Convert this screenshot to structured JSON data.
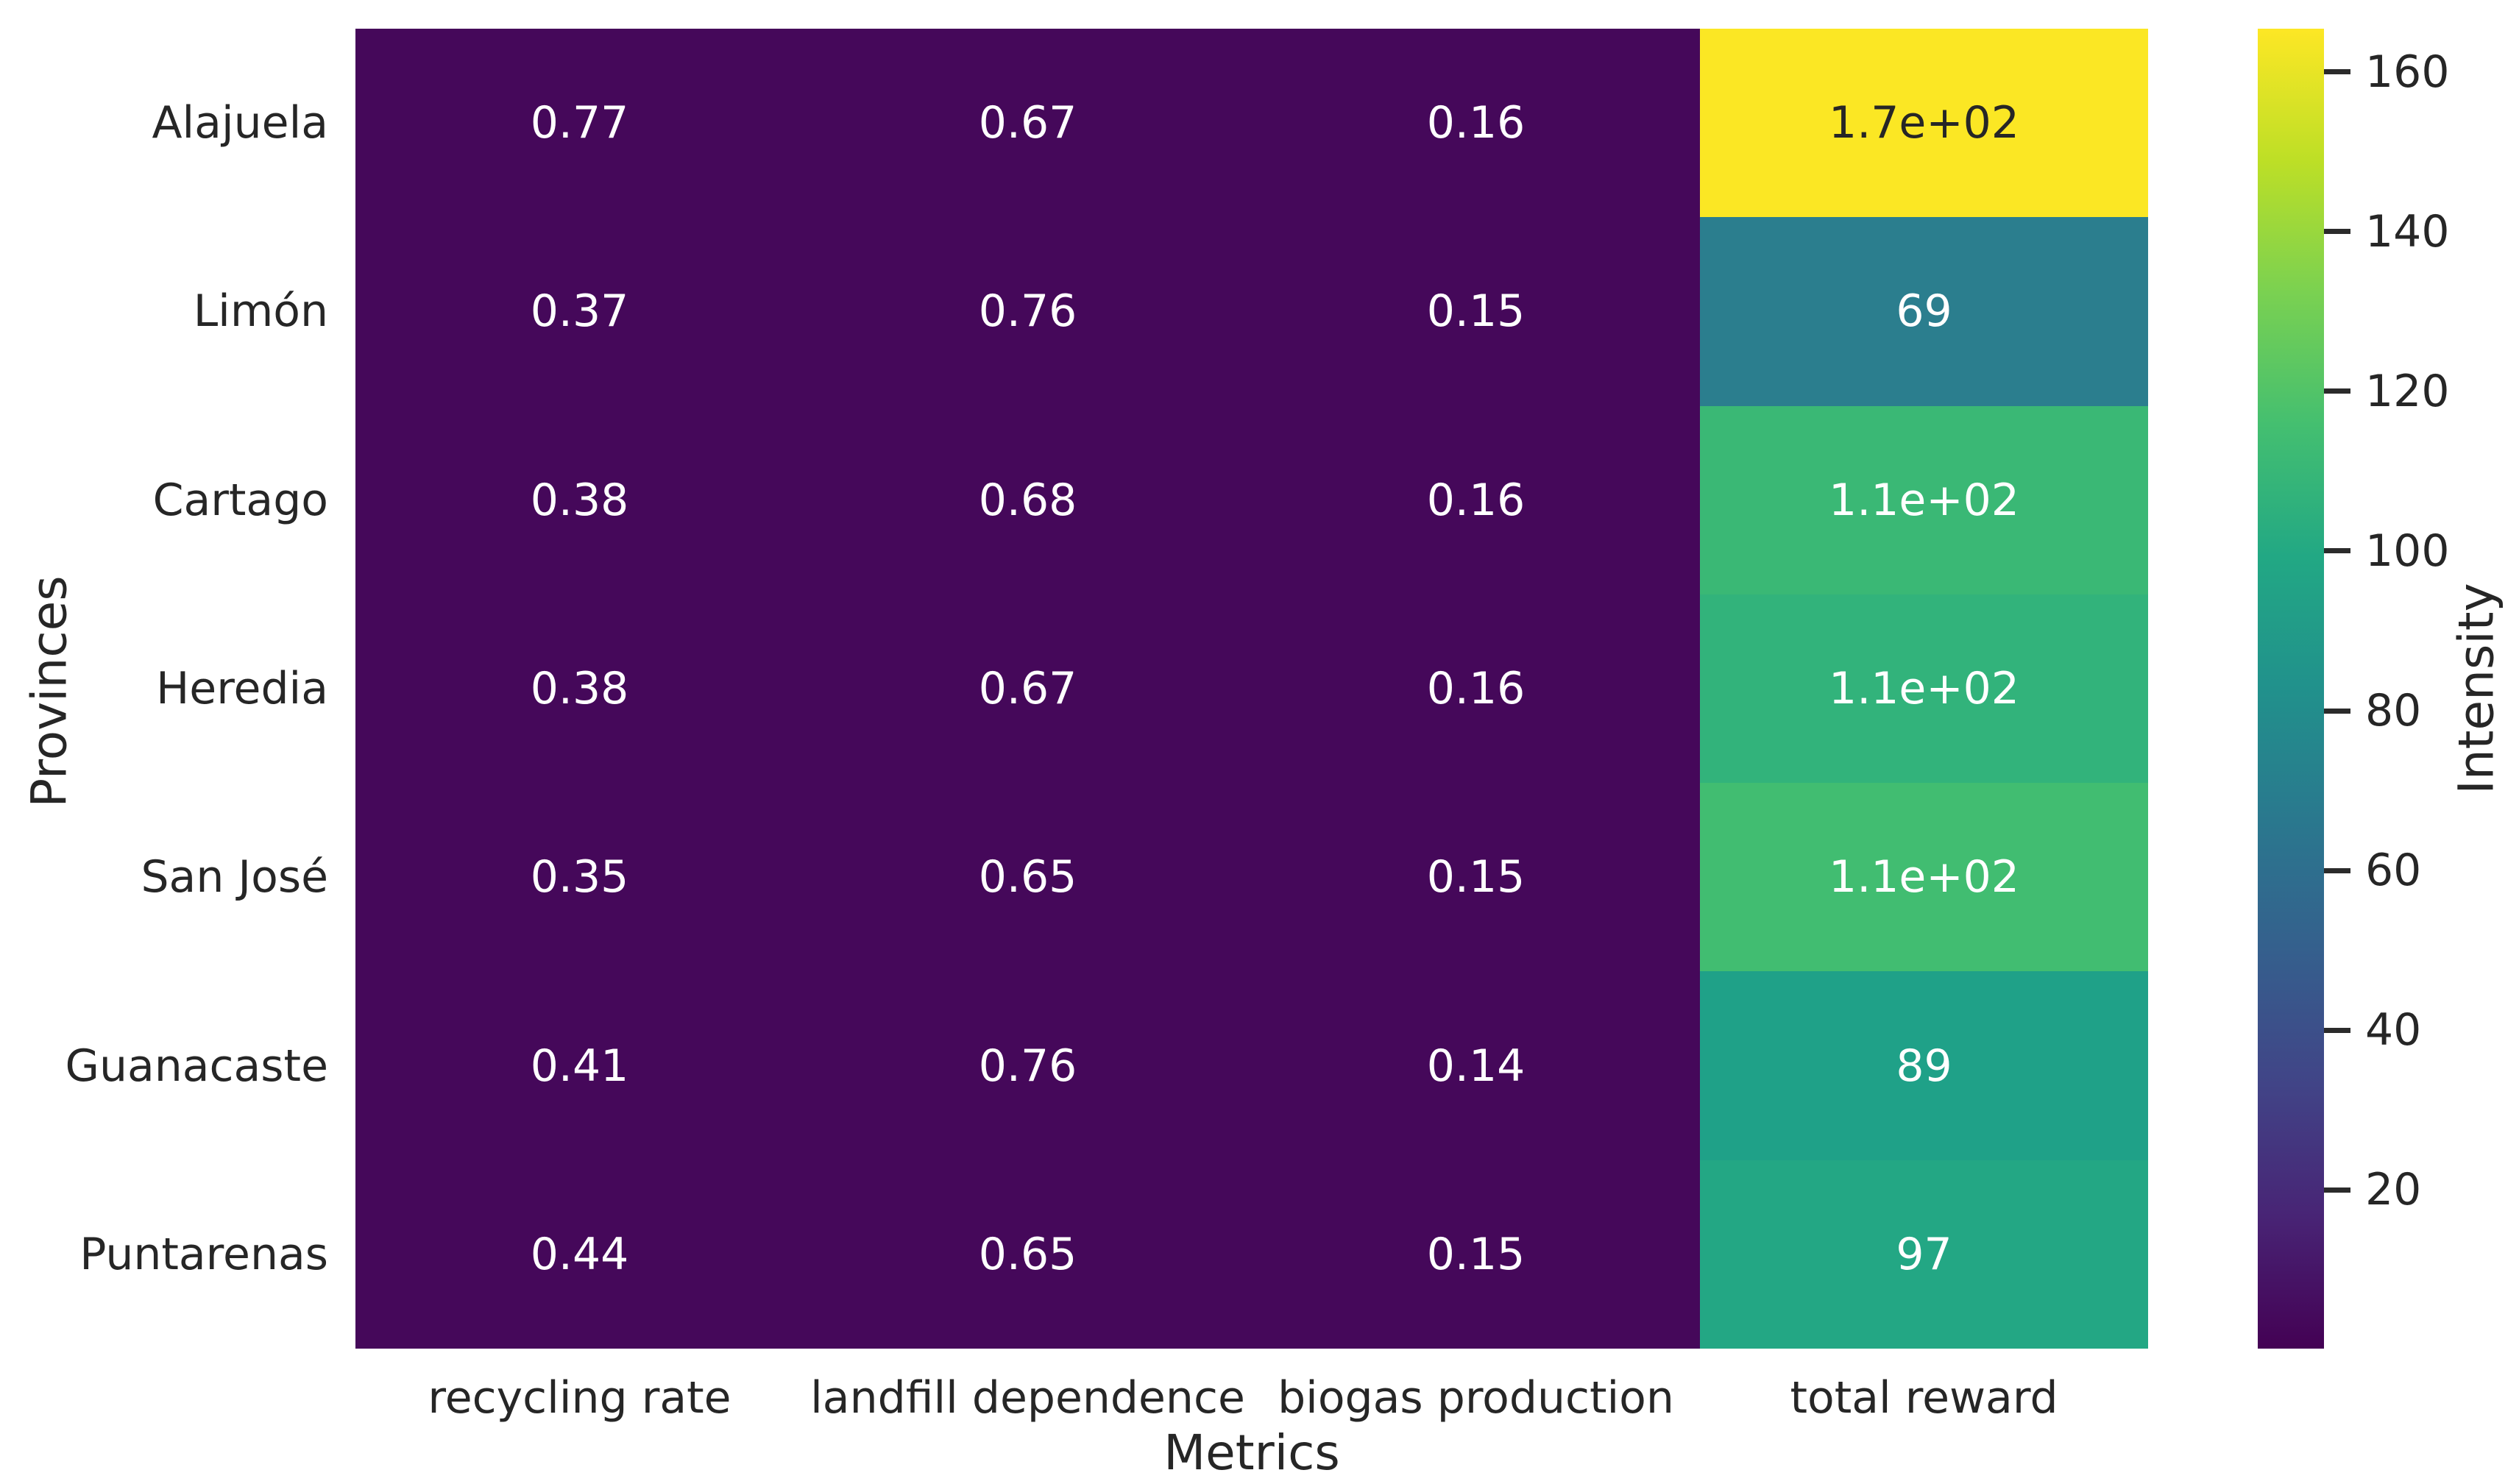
{
  "chart_data": {
    "type": "heatmap",
    "colormap": "viridis",
    "xlabel": "Metrics",
    "ylabel": "Provinces",
    "colorbar_label": "Intensity",
    "rows": [
      "Alajuela",
      "Limón",
      "Cartago",
      "Heredia",
      "San José",
      "Guanacaste",
      "Puntarenas"
    ],
    "columns": [
      "recycling rate",
      "landfill dependence",
      "biogas production",
      "total reward"
    ],
    "cell_labels": [
      [
        "0.77",
        "0.67",
        "0.16",
        "1.7e+02"
      ],
      [
        "0.37",
        "0.76",
        "0.15",
        "69"
      ],
      [
        "0.38",
        "0.68",
        "0.16",
        "1.1e+02"
      ],
      [
        "0.38",
        "0.67",
        "0.16",
        "1.1e+02"
      ],
      [
        "0.35",
        "0.65",
        "0.15",
        "1.1e+02"
      ],
      [
        "0.41",
        "0.76",
        "0.14",
        "89"
      ],
      [
        "0.44",
        "0.65",
        "0.15",
        "97"
      ]
    ],
    "values": [
      [
        0.77,
        0.67,
        0.16,
        170
      ],
      [
        0.37,
        0.76,
        0.15,
        69
      ],
      [
        0.38,
        0.68,
        0.16,
        110
      ],
      [
        0.38,
        0.67,
        0.16,
        110
      ],
      [
        0.35,
        0.65,
        0.15,
        110
      ],
      [
        0.41,
        0.76,
        0.14,
        89
      ],
      [
        0.44,
        0.65,
        0.15,
        97
      ]
    ],
    "cell_colors": [
      [
        "#45085a",
        "#45085a",
        "#45085a",
        "#fbe724"
      ],
      [
        "#45085a",
        "#45085a",
        "#45085a",
        "#2b7e8e"
      ],
      [
        "#45085a",
        "#45085a",
        "#45085a",
        "#3ab875"
      ],
      [
        "#45085a",
        "#45085a",
        "#45085a",
        "#32b37b"
      ],
      [
        "#45085a",
        "#45085a",
        "#45085a",
        "#41bd71"
      ],
      [
        "#45085a",
        "#45085a",
        "#45085a",
        "#1fa188"
      ],
      [
        "#45085a",
        "#45085a",
        "#45085a",
        "#23a784"
      ]
    ],
    "cell_text_colors": [
      [
        "#ffffff",
        "#ffffff",
        "#ffffff",
        "#262626"
      ],
      [
        "#ffffff",
        "#ffffff",
        "#ffffff",
        "#ffffff"
      ],
      [
        "#ffffff",
        "#ffffff",
        "#ffffff",
        "#ffffff"
      ],
      [
        "#ffffff",
        "#ffffff",
        "#ffffff",
        "#ffffff"
      ],
      [
        "#ffffff",
        "#ffffff",
        "#ffffff",
        "#ffffff"
      ],
      [
        "#ffffff",
        "#ffffff",
        "#ffffff",
        "#ffffff"
      ],
      [
        "#ffffff",
        "#ffffff",
        "#ffffff",
        "#ffffff"
      ]
    ],
    "colorbar": {
      "ticks": [
        20,
        40,
        60,
        80,
        100,
        120,
        140,
        160
      ],
      "value_range_est": [
        0.14,
        165.4
      ],
      "gradient_stops": [
        "#440154",
        "#482475",
        "#414487",
        "#355f8d",
        "#2a788e",
        "#21918c",
        "#22a884",
        "#44bf70",
        "#7ad151",
        "#bddf26",
        "#fde725"
      ]
    },
    "text_color": "#262626",
    "grid": false,
    "legend_position": "colorbar-right"
  }
}
